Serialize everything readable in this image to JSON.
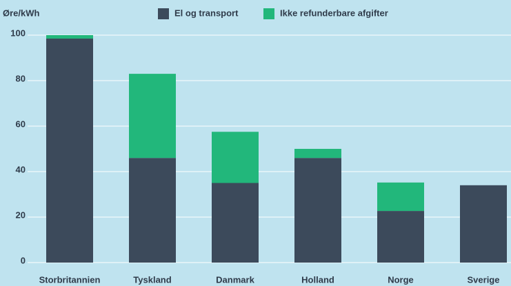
{
  "chart_data": {
    "type": "stacked_bar",
    "title": "Øre/kWh",
    "categories": [
      "Storbritannien",
      "Tyskland",
      "Danmark",
      "Holland",
      "Norge",
      "Sverige"
    ],
    "series": [
      {
        "name": "El og transport",
        "color": "#3c4a5b",
        "values": [
          98.5,
          46,
          35,
          46,
          22.7,
          34
        ]
      },
      {
        "name": "Ikke refunderbare afgifter",
        "color": "#22b77b",
        "values": [
          1.5,
          37,
          22.5,
          4,
          12.5,
          0
        ]
      }
    ],
    "ylim": [
      0,
      102
    ],
    "yticks": [
      0,
      20,
      40,
      60,
      80,
      100
    ],
    "grid": true
  }
}
